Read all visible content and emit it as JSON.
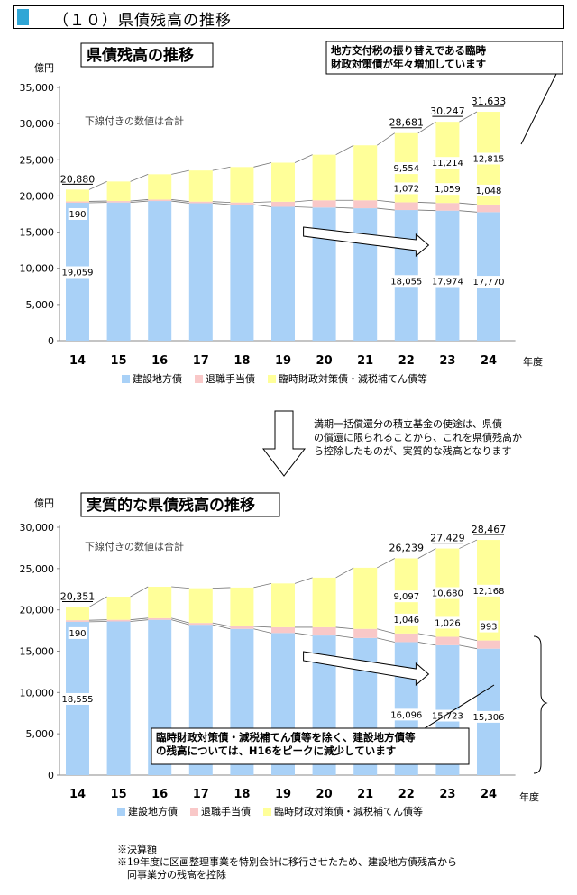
{
  "header": {
    "title": "（１０）県債残高の推移"
  },
  "arrow_note": "満期一括償還分の積立基金の使途は、県債の償還に限られることから、これを県債残高から控除したものが、実質的な残高となります",
  "notes": [
    "※決算額",
    "※19年度に区画整理事業を特別会計に移行させたため、建設地方債残高から",
    "　同事業分の残高を控除"
  ],
  "colors": {
    "construction": "#a9d1f7",
    "retirement": "#f9c8c8",
    "special": "#ffff99",
    "header_mark": "#2fa6d6"
  },
  "chart_data": [
    {
      "type": "bar",
      "stacked": true,
      "title": "県債残高の推移",
      "unit_label": "億円",
      "xlabel": "年度",
      "subtitle": "下線付きの数値は合計",
      "callout": "地方交付税の振り替えである臨時財政対策債が年々増加しています",
      "categories": [
        "14",
        "15",
        "16",
        "17",
        "18",
        "19",
        "20",
        "21",
        "22",
        "23",
        "24"
      ],
      "ylim": [
        0,
        35000
      ],
      "yticks": [
        "0",
        "5,000",
        "10,000",
        "15,000",
        "20,000",
        "25,000",
        "30,000",
        "35,000"
      ],
      "grid": false,
      "legend_position": "bottom",
      "series": [
        {
          "name": "建設地方債",
          "values": [
            19059,
            19100,
            19300,
            19000,
            18800,
            18500,
            18400,
            18300,
            18055,
            17974,
            17770
          ],
          "labels": [
            "19,059",
            null,
            null,
            null,
            null,
            null,
            null,
            null,
            "18,055",
            "17,974",
            "17,770"
          ]
        },
        {
          "name": "退職手当債",
          "values": [
            190,
            200,
            200,
            220,
            300,
            700,
            1000,
            1100,
            1072,
            1059,
            1048
          ],
          "labels": [
            "190",
            null,
            null,
            null,
            null,
            null,
            null,
            null,
            "1,072",
            "1,059",
            "1,048"
          ]
        },
        {
          "name": "臨時財政対策債・減税補てん債等",
          "values": [
            1631,
            2700,
            3500,
            4300,
            4900,
            5400,
            6300,
            7600,
            9554,
            11214,
            12815
          ],
          "labels": [
            null,
            null,
            null,
            null,
            null,
            null,
            null,
            null,
            "9,554",
            "11,214",
            "12,815"
          ]
        }
      ],
      "totals": {
        "20,880": 0,
        "28,681": 8,
        "30,247": 9,
        "31,633": 10
      }
    },
    {
      "type": "bar",
      "stacked": true,
      "title": "実質的な県債残高の推移",
      "unit_label": "億円",
      "xlabel": "年度",
      "subtitle": "下線付きの数値は合計",
      "callout": "臨時財政対策債・減税補てん債等を除く、建設地方債等の残高については、H16をピークに減少しています",
      "categories": [
        "14",
        "15",
        "16",
        "17",
        "18",
        "19",
        "20",
        "21",
        "22",
        "23",
        "24"
      ],
      "ylim": [
        0,
        30000
      ],
      "yticks": [
        "0",
        "5,000",
        "10,000",
        "15,000",
        "20,000",
        "25,000",
        "30,000"
      ],
      "grid": false,
      "legend_position": "bottom",
      "series": [
        {
          "name": "建設地方債",
          "values": [
            18555,
            18600,
            18800,
            18200,
            17700,
            17200,
            16900,
            16600,
            16096,
            15723,
            15306
          ],
          "labels": [
            "18,555",
            null,
            null,
            null,
            null,
            null,
            null,
            null,
            "16,096",
            "15,723",
            "15,306"
          ]
        },
        {
          "name": "退職手当債",
          "values": [
            190,
            200,
            200,
            220,
            300,
            700,
            1000,
            1100,
            1046,
            1026,
            993
          ],
          "labels": [
            "190",
            null,
            null,
            null,
            null,
            null,
            null,
            null,
            "1,046",
            "1,026",
            "993"
          ]
        },
        {
          "name": "臨時財政対策債・減税補てん債等",
          "values": [
            1606,
            2800,
            3800,
            4200,
            4700,
            5300,
            6000,
            7400,
            9097,
            10680,
            12168
          ],
          "labels": [
            null,
            null,
            null,
            null,
            null,
            null,
            null,
            null,
            "9,097",
            "10,680",
            "12,168"
          ]
        }
      ],
      "totals": {
        "20,351": 0,
        "26,239": 8,
        "27,429": 9,
        "28,467": 10
      }
    }
  ]
}
